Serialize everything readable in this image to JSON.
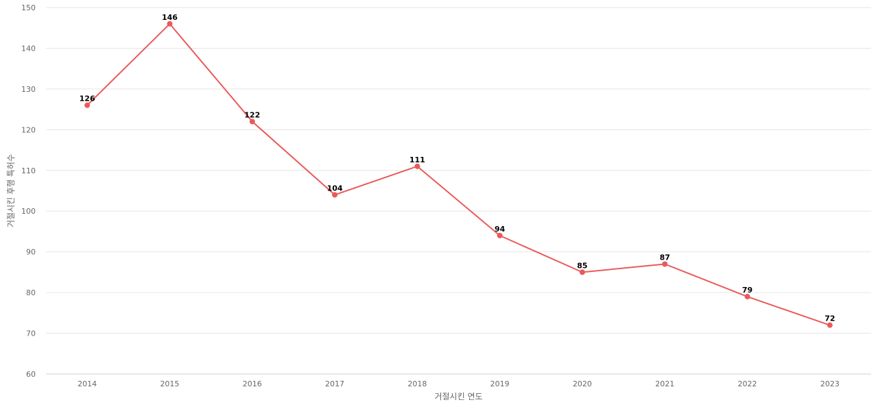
{
  "chart_data": {
    "type": "line",
    "xlabel": "거절시킨 연도",
    "ylabel": "거절시킨 후행 특허수",
    "ylim": [
      60,
      150
    ],
    "yticks": [
      60,
      70,
      80,
      90,
      100,
      110,
      120,
      130,
      140,
      150
    ],
    "grid": true,
    "categories": [
      "2014",
      "2015",
      "2016",
      "2017",
      "2018",
      "2019",
      "2020",
      "2021",
      "2022",
      "2023"
    ],
    "series": [
      {
        "values": [
          126,
          146,
          122,
          104,
          111,
          94,
          85,
          87,
          79,
          72
        ],
        "color": "#ea5a5a"
      }
    ]
  }
}
